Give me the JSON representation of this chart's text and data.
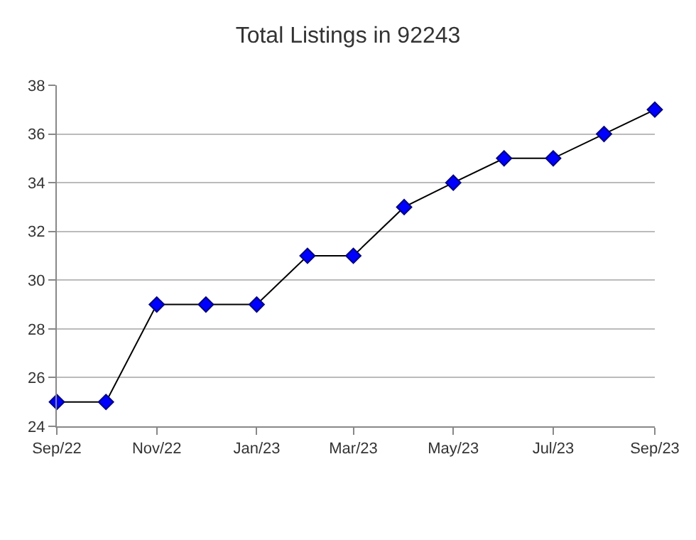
{
  "chart_data": {
    "type": "line",
    "title": "Total Listings in 92243",
    "x": [
      "2022-09",
      "2022-10",
      "2022-11",
      "2022-12",
      "2023-01",
      "2023-02",
      "2023-03",
      "2023-04",
      "2023-05",
      "2023-06",
      "2023-07",
      "2023-08",
      "2023-09"
    ],
    "series": [
      {
        "color": "#0000ff",
        "values": [
          25,
          25,
          29,
          29,
          29,
          31,
          31,
          33,
          34,
          35,
          35,
          36,
          37
        ]
      }
    ],
    "xlim": [
      "2022-09",
      "2023-09"
    ],
    "xticks": [
      {
        "value": "2022-09",
        "label": "Sep/22"
      },
      {
        "value": "2022-11",
        "label": "Nov/22"
      },
      {
        "value": "2023-01",
        "label": "Jan/23"
      },
      {
        "value": "2023-03",
        "label": "Mar/23"
      },
      {
        "value": "2023-05",
        "label": "May/23"
      },
      {
        "value": "2023-07",
        "label": "Jul/23"
      },
      {
        "value": "2023-09",
        "label": "Sep/23"
      }
    ],
    "ylim": [
      24,
      38
    ],
    "yticks": [
      24,
      26,
      28,
      30,
      32,
      34,
      36,
      38
    ],
    "grid": "y",
    "marker": "diamond",
    "line_style": "solid"
  }
}
